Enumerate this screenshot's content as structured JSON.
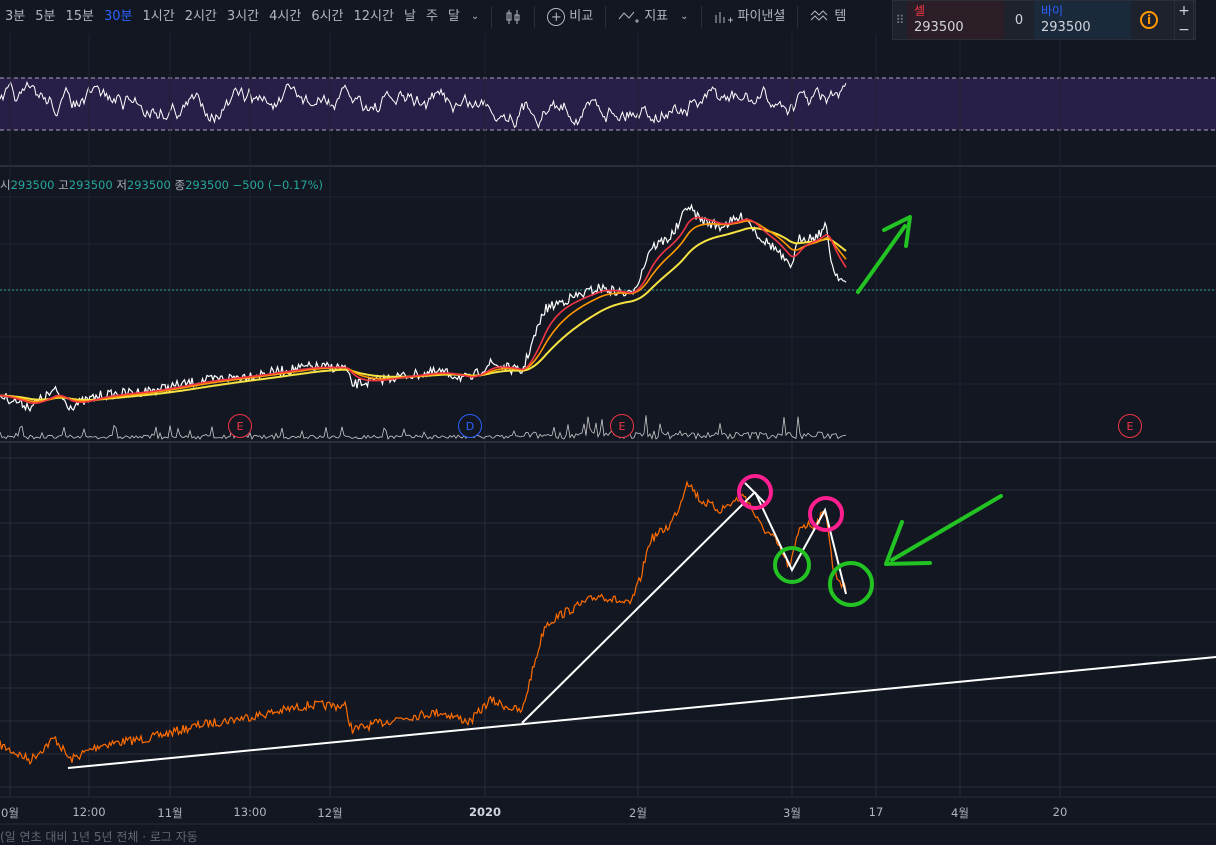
{
  "toolbar": {
    "intervals": [
      "3분",
      "5분",
      "15분",
      "30분",
      "1시간",
      "2시간",
      "3시간",
      "4시간",
      "6시간",
      "12시간",
      "날",
      "주",
      "달"
    ],
    "active_interval": "30분",
    "compare_label": "비교",
    "indicators_label": "지표",
    "pine_label": "파이낸셜",
    "template_label": "템"
  },
  "trade_panel": {
    "sell_label": "셀",
    "sell_price": "293500",
    "quantity": "0",
    "buy_label": "바이",
    "buy_price": "293500",
    "info_icon": "i",
    "zoom_in": "+",
    "zoom_out": "−"
  },
  "ohlc": {
    "open_label": "시",
    "open": "293500",
    "high_label": "고",
    "high": "293500",
    "low_label": "저",
    "low": "293500",
    "close_label": "종",
    "close": "293500",
    "change": "−500 (−0.17%)"
  },
  "x_axis": [
    "0월",
    "12:00",
    "11월",
    "13:00",
    "12월",
    "2020",
    "2월",
    "3월",
    "17",
    "4월",
    "20"
  ],
  "events": [
    "E",
    "D",
    "E",
    "E"
  ],
  "bottom_tabs": "(일   연초 대비   1년   5년   전체       ·   로그   자동",
  "colors": {
    "background": "#131722",
    "rsi_band": "#2a1f4a",
    "ma_red": "#f23645",
    "ma_orange": "#ff9800",
    "ma_yellow": "#f5e342",
    "price_line": "#ff6d00",
    "arrow_green": "#22c322",
    "circle_pink": "#ff1f8f",
    "circle_green": "#22c322"
  }
}
